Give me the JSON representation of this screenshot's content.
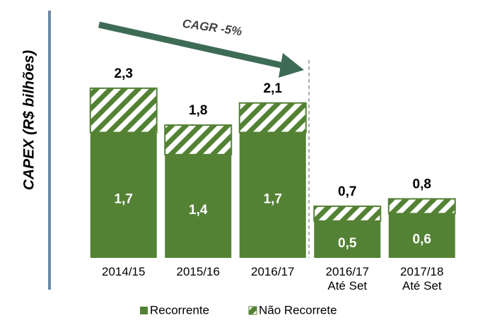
{
  "chart_data": {
    "type": "stacked_bar",
    "y_label": "CAPEX (R$ bilhões)",
    "annotation": "CAGR  -5%",
    "categories": [
      "2014/15",
      "2015/16",
      "2016/17",
      "2016/17\nAté Set",
      "2017/18\nAté Set"
    ],
    "series": [
      {
        "name": "Recorrente",
        "color": "#548235",
        "values": [
          1.7,
          1.4,
          1.7,
          0.5,
          0.6
        ],
        "value_labels": [
          "1,7",
          "1,4",
          "1,7",
          "0,5",
          "0,6"
        ]
      },
      {
        "name": "Não Recorrete",
        "color": "#548235",
        "pattern": "hatch",
        "values": [
          0.6,
          0.4,
          0.4,
          0.2,
          0.2
        ]
      }
    ],
    "totals": [
      2.3,
      1.8,
      2.1,
      0.7,
      0.8
    ],
    "total_labels": [
      "2,3",
      "1,8",
      "2,1",
      "0,7",
      "0,8"
    ],
    "ylim": [
      0,
      3.4
    ]
  }
}
